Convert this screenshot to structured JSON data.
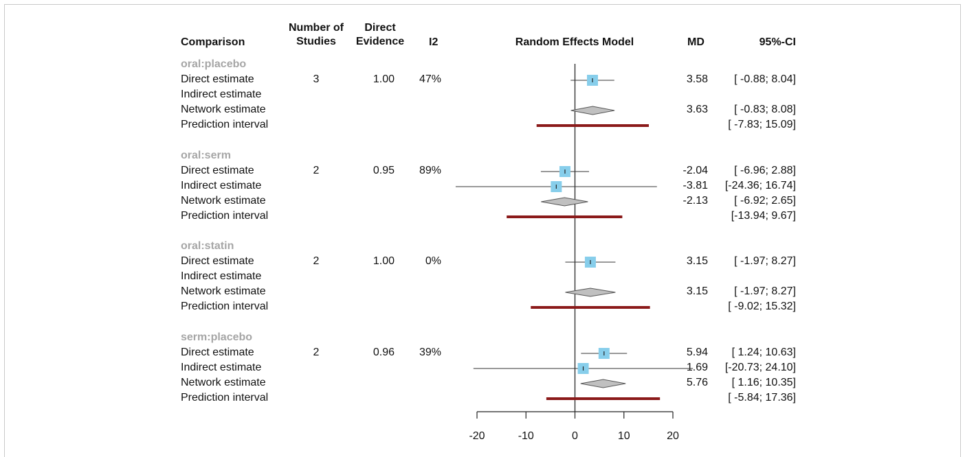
{
  "chart_data": {
    "type": "forest",
    "title": "",
    "columns": {
      "comparison": "Comparison",
      "n_studies": "Number of Studies",
      "direct_evidence": "Direct Evidence",
      "i2": "I2",
      "plot": "Random Effects Model",
      "md": "MD",
      "ci": "95%-CI"
    },
    "xlim": [
      -20,
      20
    ],
    "xticks": [
      -20,
      -10,
      0,
      10,
      20
    ],
    "xtick_labels": [
      "-20",
      "-10",
      "0",
      "10",
      "20"
    ],
    "reference_line": 0,
    "colors": {
      "square": "#87ceeb",
      "diamond": "#c0c0c0",
      "prediction": "#8b1a1a"
    },
    "groups": [
      {
        "name": "oral:placebo",
        "rows": [
          {
            "label": "Direct estimate",
            "n": "3",
            "direct": "1.00",
            "i2": "47%",
            "md": 3.58,
            "lower": -0.88,
            "upper": 8.04,
            "md_text": "3.58",
            "ci_text": "[ -0.88;  8.04]",
            "shape": "square"
          },
          {
            "label": "Indirect estimate",
            "shape": "none"
          },
          {
            "label": "Network estimate",
            "md": 3.63,
            "lower": -0.83,
            "upper": 8.08,
            "md_text": "3.63",
            "ci_text": "[ -0.83;  8.08]",
            "shape": "diamond"
          },
          {
            "label": "Prediction interval",
            "lower": -7.83,
            "upper": 15.09,
            "ci_text": "[ -7.83; 15.09]",
            "shape": "interval"
          }
        ]
      },
      {
        "name": "oral:serm",
        "rows": [
          {
            "label": "Direct estimate",
            "n": "2",
            "direct": "0.95",
            "i2": "89%",
            "md": -2.04,
            "lower": -6.96,
            "upper": 2.88,
            "md_text": "-2.04",
            "ci_text": "[ -6.96;  2.88]",
            "shape": "square"
          },
          {
            "label": "Indirect estimate",
            "md": -3.81,
            "lower": -24.36,
            "upper": 16.74,
            "md_text": "-3.81",
            "ci_text": "[-24.36; 16.74]",
            "shape": "square"
          },
          {
            "label": "Network estimate",
            "md": -2.13,
            "lower": -6.92,
            "upper": 2.65,
            "md_text": "-2.13",
            "ci_text": "[ -6.92;  2.65]",
            "shape": "diamond"
          },
          {
            "label": "Prediction interval",
            "lower": -13.94,
            "upper": 9.67,
            "ci_text": "[-13.94;  9.67]",
            "shape": "interval"
          }
        ]
      },
      {
        "name": "oral:statin",
        "rows": [
          {
            "label": "Direct estimate",
            "n": "2",
            "direct": "1.00",
            "i2": "0%",
            "md": 3.15,
            "lower": -1.97,
            "upper": 8.27,
            "md_text": "3.15",
            "ci_text": "[ -1.97;  8.27]",
            "shape": "square"
          },
          {
            "label": "Indirect estimate",
            "shape": "none"
          },
          {
            "label": "Network estimate",
            "md": 3.15,
            "lower": -1.97,
            "upper": 8.27,
            "md_text": "3.15",
            "ci_text": "[ -1.97;  8.27]",
            "shape": "diamond"
          },
          {
            "label": "Prediction interval",
            "lower": -9.02,
            "upper": 15.32,
            "ci_text": "[ -9.02; 15.32]",
            "shape": "interval"
          }
        ]
      },
      {
        "name": "serm:placebo",
        "rows": [
          {
            "label": "Direct estimate",
            "n": "2",
            "direct": "0.96",
            "i2": "39%",
            "md": 5.94,
            "lower": 1.24,
            "upper": 10.63,
            "md_text": "5.94",
            "ci_text": "[  1.24; 10.63]",
            "shape": "square"
          },
          {
            "label": "Indirect estimate",
            "md": 1.69,
            "lower": -20.73,
            "upper": 24.1,
            "md_text": "1.69",
            "ci_text": "[-20.73; 24.10]",
            "shape": "square"
          },
          {
            "label": "Network estimate",
            "md": 5.76,
            "lower": 1.16,
            "upper": 10.35,
            "md_text": "5.76",
            "ci_text": "[  1.16; 10.35]",
            "shape": "diamond"
          },
          {
            "label": "Prediction interval",
            "lower": -5.84,
            "upper": 17.36,
            "ci_text": "[ -5.84; 17.36]",
            "shape": "interval"
          }
        ]
      }
    ]
  }
}
